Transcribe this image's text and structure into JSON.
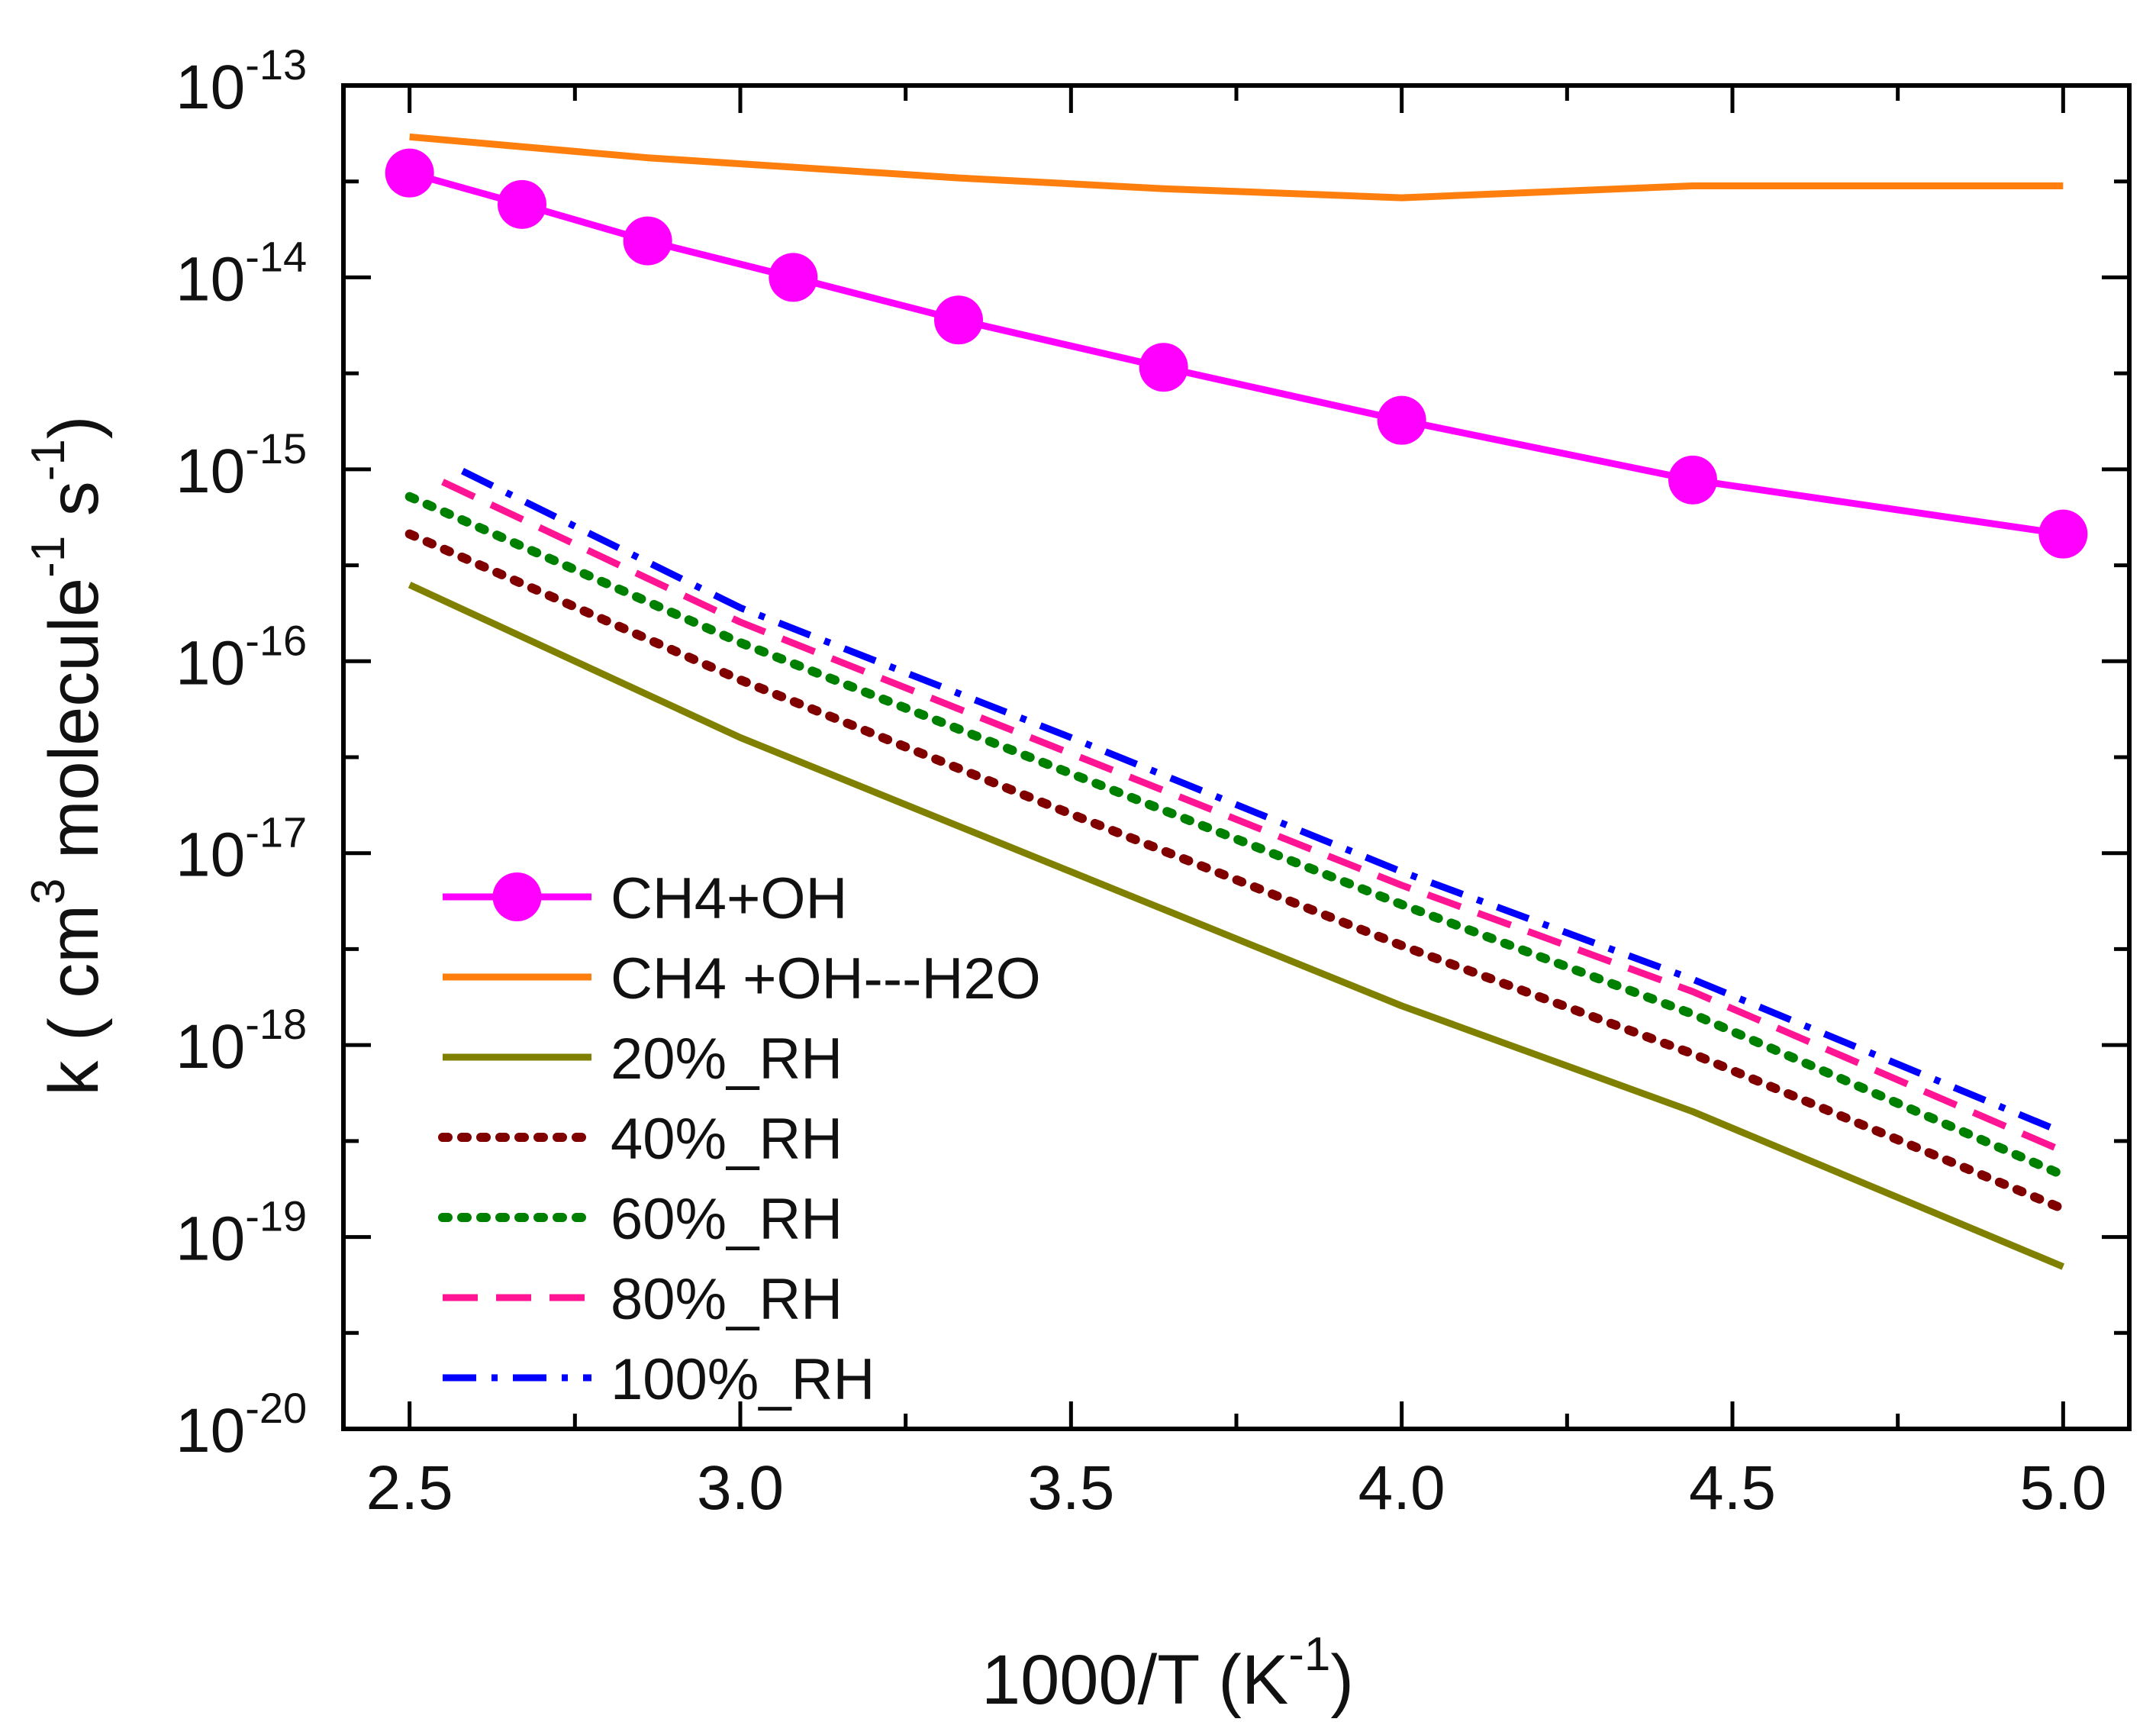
{
  "chart_data": {
    "type": "line",
    "title": "",
    "xlabel": {
      "main": "1000/T (K",
      "sup": "-1",
      "end": ")"
    },
    "ylabel": {
      "main1": "k ( cm",
      "sup1": "3",
      "main2": " molecule",
      "sup2": "-1",
      "main3": " s",
      "sup3": "-1",
      "end": ")"
    },
    "yscale": "log",
    "xlim": [
      2.4,
      5.1
    ],
    "ylim_exp": [
      -20,
      -13
    ],
    "xticks": [
      {
        "value": 2.5,
        "label": "2.5"
      },
      {
        "value": 3.0,
        "label": "3.0"
      },
      {
        "value": 3.5,
        "label": "3.5"
      },
      {
        "value": 4.0,
        "label": "4.0"
      },
      {
        "value": 4.5,
        "label": "4.5"
      },
      {
        "value": 5.0,
        "label": "5.0"
      }
    ],
    "yticks": [
      {
        "exp": -13,
        "base": "10",
        "sup": "-13"
      },
      {
        "exp": -14,
        "base": "10",
        "sup": "-14"
      },
      {
        "exp": -15,
        "base": "10",
        "sup": "-15"
      },
      {
        "exp": -16,
        "base": "10",
        "sup": "-16"
      },
      {
        "exp": -17,
        "base": "10",
        "sup": "-17"
      },
      {
        "exp": -18,
        "base": "10",
        "sup": "-18"
      },
      {
        "exp": -19,
        "base": "10",
        "sup": "-19"
      },
      {
        "exp": -20,
        "base": "10",
        "sup": "-20"
      }
    ],
    "legend_position": "bottom-left",
    "series": [
      {
        "name": "CH4+OH",
        "color": "#ff00ff",
        "style": "solid",
        "markers": true,
        "points": [
          [
            2.5,
            3.5e-14
          ],
          [
            2.67,
            2.4e-14
          ],
          [
            2.86,
            1.55e-14
          ],
          [
            3.08,
            1e-14
          ],
          [
            3.33,
            6e-15
          ],
          [
            3.64,
            3.4e-15
          ],
          [
            4.0,
            1.8e-15
          ],
          [
            4.44,
            8.8e-16
          ],
          [
            5.0,
            4.6e-16
          ]
        ]
      },
      {
        "name": "CH4 +OH---H2O",
        "color": "#ff7f0e",
        "style": "solid",
        "markers": false,
        "points": [
          [
            2.5,
            5.4e-14
          ],
          [
            2.86,
            4.2e-14
          ],
          [
            3.33,
            3.3e-14
          ],
          [
            3.64,
            2.9e-14
          ],
          [
            4.0,
            2.6e-14
          ],
          [
            4.44,
            3e-14
          ],
          [
            5.0,
            3e-14
          ]
        ]
      },
      {
        "name": "20%_RH",
        "color": "#808000",
        "style": "solid",
        "markers": false,
        "points": [
          [
            2.5,
            2.5e-16
          ],
          [
            3.0,
            4e-17
          ],
          [
            3.5,
            8e-18
          ],
          [
            4.0,
            1.6e-18
          ],
          [
            4.44,
            4.5e-19
          ],
          [
            5.0,
            7e-20
          ]
        ]
      },
      {
        "name": "40%_RH",
        "color": "#800000",
        "style": "dotted",
        "markers": false,
        "points": [
          [
            2.5,
            4.6e-16
          ],
          [
            3.0,
            8e-17
          ],
          [
            3.5,
            1.6e-17
          ],
          [
            4.0,
            3.3e-18
          ],
          [
            4.44,
            9e-19
          ],
          [
            5.0,
            1.4e-19
          ]
        ]
      },
      {
        "name": "60%_RH",
        "color": "#008000",
        "style": "dotted",
        "markers": false,
        "points": [
          [
            2.5,
            7.2e-16
          ],
          [
            3.0,
            1.25e-16
          ],
          [
            3.5,
            2.6e-17
          ],
          [
            4.0,
            5.4e-18
          ],
          [
            4.44,
            1.45e-18
          ],
          [
            5.0,
            2.1e-19
          ]
        ]
      },
      {
        "name": "80%_RH",
        "color": "#ff1493",
        "style": "dash",
        "markers": false,
        "points": [
          [
            2.55,
            8.6e-16
          ],
          [
            3.0,
            1.6e-16
          ],
          [
            3.5,
            3.3e-17
          ],
          [
            4.0,
            6.8e-18
          ],
          [
            4.44,
            1.9e-18
          ],
          [
            5.0,
            2.8e-19
          ]
        ]
      },
      {
        "name": "100%_RH",
        "color": "#0000ff",
        "style": "dashdot",
        "markers": false,
        "points": [
          [
            2.58,
            9.8e-16
          ],
          [
            3.0,
            1.9e-16
          ],
          [
            3.5,
            4e-17
          ],
          [
            4.0,
            8e-18
          ],
          [
            4.44,
            2.2e-18
          ],
          [
            5.0,
            3.5e-19
          ]
        ]
      }
    ]
  }
}
